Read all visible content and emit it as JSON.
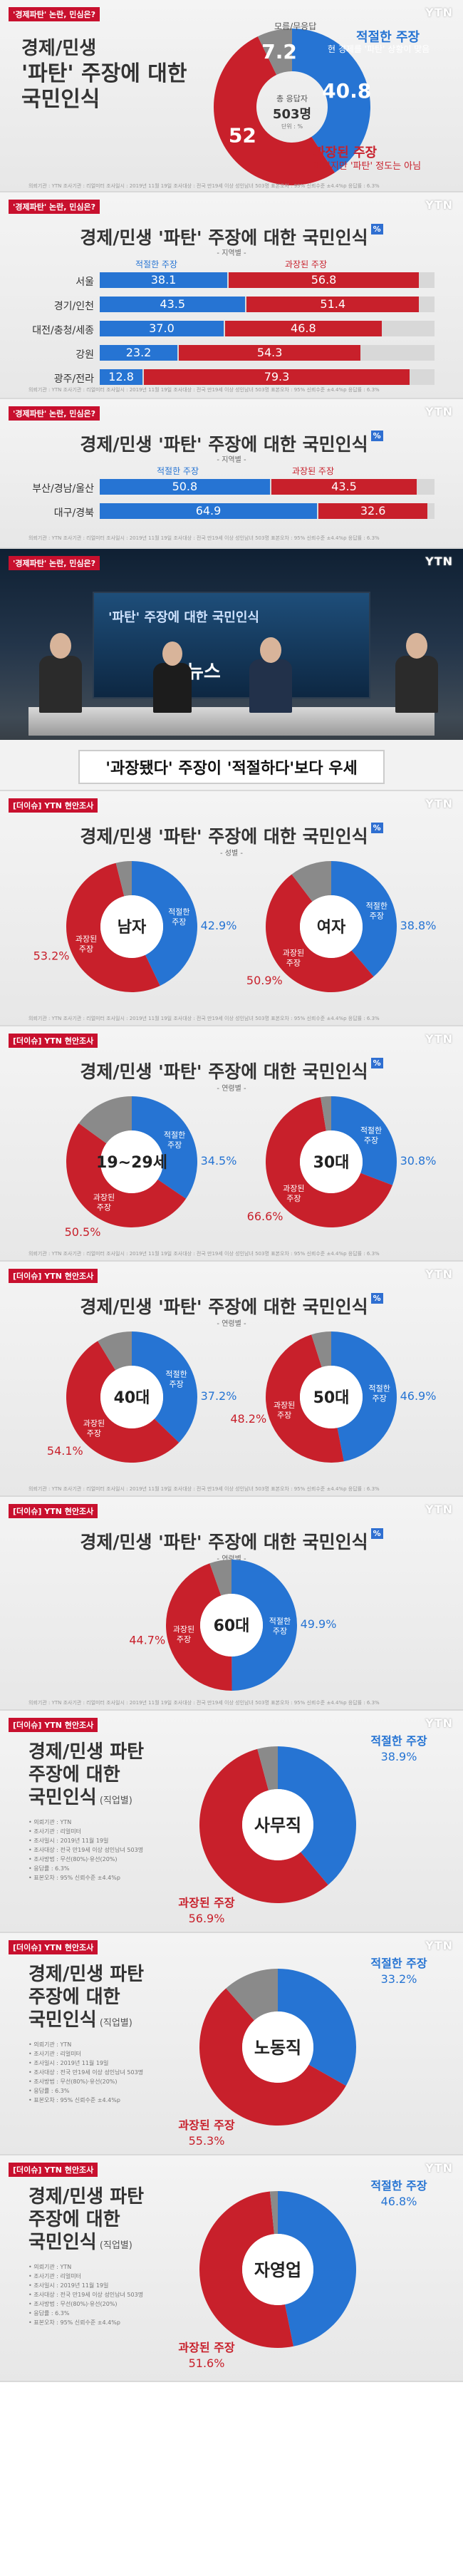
{
  "brand": "YTN",
  "tag_top": "'경제파탄' 논란, 민심은?",
  "tag_section": "[더이슈] YTN 현안조사",
  "chart_data": [
    {
      "type": "pie",
      "title": "경제/민생 '파탄' 주장에 대한 국민인식",
      "center_top": "총 응답자",
      "center_value": "503명",
      "center_unit": "단위 : %",
      "categories": [
        "적절한 주장",
        "과장된 주장",
        "모름/무응답"
      ],
      "values": [
        40.8,
        52,
        7.2
      ],
      "value_labels": [
        "40.8",
        "52",
        "7.2"
      ],
      "notes": [
        "현 경제를 '파탄' 상황이 맞음",
        "어렵지만 '파탄' 정도는 아님"
      ],
      "colors": [
        "#2674d3",
        "#c8202b",
        "#9a9a9a"
      ]
    },
    {
      "type": "bar",
      "title": "경제/민생 '파탄' 주장에 대한 국민인식",
      "subtitle": "- 지역별 -",
      "categories": [
        "서울",
        "경기/인천",
        "대전/충청/세종",
        "강원",
        "광주/전라"
      ],
      "series": [
        {
          "name": "적절한 주장",
          "values": [
            38.1,
            43.5,
            37.0,
            23.2,
            12.8
          ],
          "labels": [
            "38.1",
            "43.5",
            "37.0",
            "23.2",
            "12.8"
          ]
        },
        {
          "name": "과장된 주장",
          "values": [
            56.8,
            51.4,
            46.8,
            54.3,
            79.3
          ],
          "labels": [
            "56.8",
            "51.4",
            "46.8",
            "54.3",
            "79.3"
          ]
        }
      ],
      "colors": [
        "#2674d3",
        "#c8202b"
      ],
      "ylim": [
        0,
        100
      ]
    },
    {
      "type": "bar",
      "title": "경제/민생 '파탄' 주장에 대한 국민인식",
      "subtitle": "- 지역별 -",
      "categories": [
        "부산/경남/울산",
        "대구/경북"
      ],
      "series": [
        {
          "name": "적절한 주장",
          "values": [
            50.8,
            64.9
          ],
          "labels": [
            "50.8",
            "64.9"
          ]
        },
        {
          "name": "과장된 주장",
          "values": [
            43.5,
            32.6
          ],
          "labels": [
            "43.5",
            "32.6"
          ]
        }
      ],
      "colors": [
        "#2674d3",
        "#c8202b"
      ],
      "ylim": [
        0,
        100
      ]
    },
    {
      "type": "pie",
      "title": "경제/민생 '파탄' 주장에 대한 국민인식",
      "subtitle": "- 성별 -",
      "groups": [
        {
          "name": "남자",
          "values": [
            42.9,
            53.2
          ],
          "labels": [
            "42.9",
            "53.2"
          ]
        },
        {
          "name": "여자",
          "values": [
            38.8,
            50.9
          ],
          "labels": [
            "38.8",
            "50.9"
          ]
        }
      ],
      "categories": [
        "적절한 주장",
        "과장된 주장"
      ]
    },
    {
      "type": "pie",
      "title": "경제/민생 '파탄' 주장에 대한 국민인식",
      "subtitle": "- 연령별 -",
      "groups": [
        {
          "name": "19~29세",
          "values": [
            34.5,
            50.5
          ],
          "labels": [
            "34.5",
            "50.5"
          ]
        },
        {
          "name": "30대",
          "values": [
            30.8,
            66.6
          ],
          "labels": [
            "30.8",
            "66.6"
          ]
        }
      ],
      "categories": [
        "적절한 주장",
        "과장된 주장"
      ]
    },
    {
      "type": "pie",
      "title": "경제/민생 '파탄' 주장에 대한 국민인식",
      "subtitle": "- 연령별 -",
      "groups": [
        {
          "name": "40대",
          "values": [
            37.2,
            54.1
          ],
          "labels": [
            "37.2",
            "54.1"
          ]
        },
        {
          "name": "50대",
          "values": [
            46.9,
            48.2
          ],
          "labels": [
            "46.9",
            "48.2"
          ]
        }
      ],
      "categories": [
        "적절한 주장",
        "과장된 주장"
      ]
    },
    {
      "type": "pie",
      "title": "경제/민생 '파탄' 주장에 대한 국민인식",
      "subtitle": "- 연령별 -",
      "groups": [
        {
          "name": "60대",
          "values": [
            49.9,
            44.7
          ],
          "labels": [
            "49.9",
            "44.7"
          ]
        }
      ],
      "categories": [
        "적절한 주장",
        "과장된 주장"
      ]
    },
    {
      "type": "pie",
      "title": "경제/민생 파탄 주장에 대한 국민인식",
      "title_suffix": "(직업별)",
      "groups": [
        {
          "name": "사무직",
          "values": [
            38.9,
            56.9
          ],
          "labels": [
            "38.9",
            "56.9"
          ]
        },
        {
          "name": "노동직",
          "values": [
            33.2,
            55.3
          ],
          "labels": [
            "33.2",
            "55.3"
          ]
        },
        {
          "name": "자영업",
          "values": [
            46.8,
            51.6
          ],
          "labels": [
            "46.8",
            "51.6"
          ]
        }
      ],
      "categories": [
        "적절한 주장",
        "과장된 주장"
      ]
    }
  ],
  "labels": {
    "appropriate": "적절한 주장",
    "exaggerated": "과장된 주장",
    "appropriate_short": "적절한",
    "exaggerated_short": "과장된",
    "claim": "주장",
    "no_answer": "모름/무응답",
    "percent_mark": "%",
    "pct_badge": "%"
  },
  "main_title_lines": [
    "경제/민생",
    "'파탄' 주장에 대한",
    "국민인식"
  ],
  "job_title_lines": [
    "경제/민생 파탄",
    "주장에 대한",
    "국민인식"
  ],
  "broadcast_caption": "'과장됐다' 주장이 '적절하다'보다 우세",
  "broadcast_screen_text": "'파탄' 주장에 대한 국민인식",
  "broadcast_news": "뉴스",
  "meta_lines": [
    "의뢰기관 : YTN",
    "조사기관 : 리얼미터",
    "조사일시 : 2019년 11월 19일",
    "조사대상 : 전국 만19세 이상 성인남녀 503명",
    "조사방법 : 무선(80%)·유선(20%)",
    "응답률 : 6.3%",
    "표본오차 : 95% 신뢰수준 ±4.4%p"
  ],
  "footer": "의뢰기관 : YTN   조사기관 : 리얼미터   조사일시 : 2019년 11월 19일   조사대상 : 전국 만19세 이상 성인남녀 503명   표본오차 : 95% 신뢰수준 ±4.4%p   응답률 : 6.3%"
}
